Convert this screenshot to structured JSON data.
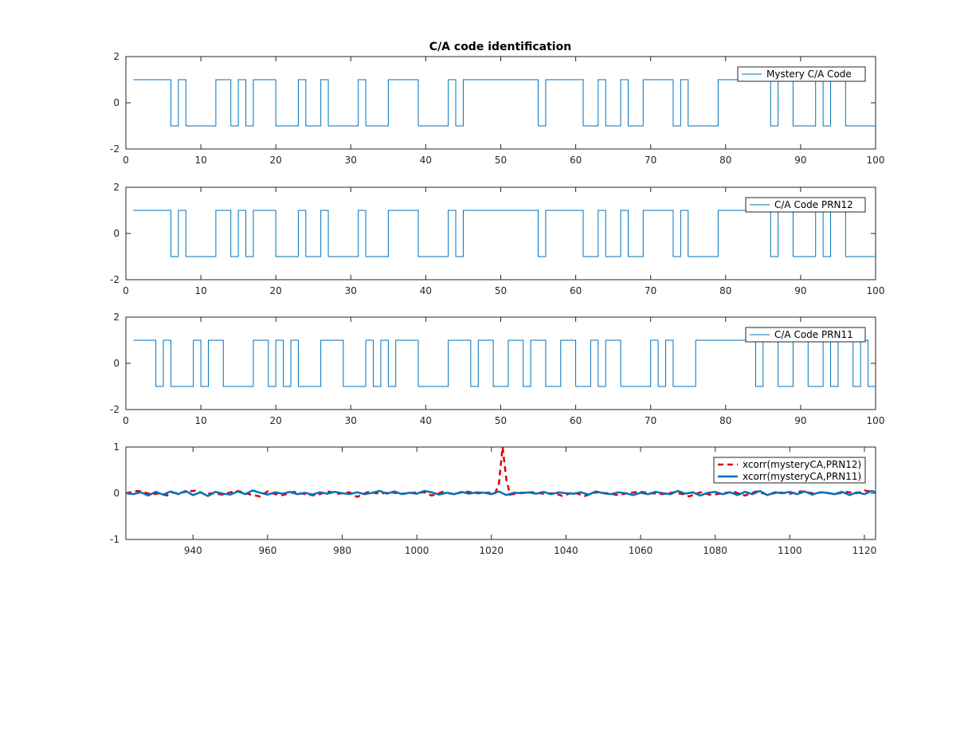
{
  "figure": {
    "title": "C/A code identification"
  },
  "colors": {
    "code": "#0072BD",
    "prn12": "#D90000",
    "prn11": "#0072BD",
    "axis": "#262626"
  },
  "chart_data": [
    {
      "type": "line",
      "title": "C/A code identification",
      "xlim": [
        0,
        100
      ],
      "ylim": [
        -2,
        2
      ],
      "xticks": [
        0,
        10,
        20,
        30,
        40,
        50,
        60,
        70,
        80,
        90,
        100
      ],
      "yticks": [
        -2,
        0,
        2
      ],
      "legend": "top-right",
      "series": [
        {
          "name": "Mystery C/A Code",
          "stairs": true,
          "x": [
            1,
            6,
            7,
            8,
            12,
            14,
            15,
            16,
            17,
            20,
            23,
            24,
            26,
            27,
            31,
            32,
            35,
            39,
            43,
            44,
            45,
            55,
            56,
            61,
            63,
            64,
            66,
            67,
            69,
            73,
            74,
            75,
            79,
            86,
            87,
            89,
            92,
            93,
            94,
            96,
            100
          ],
          "values": [
            1,
            -1,
            1,
            -1,
            1,
            -1,
            1,
            -1,
            1,
            -1,
            1,
            -1,
            1,
            -1,
            1,
            -1,
            1,
            -1,
            1,
            -1,
            1,
            -1,
            1,
            -1,
            1,
            -1,
            1,
            -1,
            1,
            -1,
            1,
            -1,
            1,
            -1,
            1,
            -1,
            1,
            -1,
            1,
            -1,
            -1
          ]
        }
      ]
    },
    {
      "type": "line",
      "xlim": [
        0,
        100
      ],
      "ylim": [
        -2,
        2
      ],
      "xticks": [
        0,
        10,
        20,
        30,
        40,
        50,
        60,
        70,
        80,
        90,
        100
      ],
      "yticks": [
        -2,
        0,
        2
      ],
      "legend": "top-right",
      "series": [
        {
          "name": "C/A Code PRN12",
          "stairs": true,
          "x": [
            1,
            6,
            7,
            8,
            12,
            14,
            15,
            16,
            17,
            20,
            23,
            24,
            26,
            27,
            31,
            32,
            35,
            39,
            43,
            44,
            45,
            55,
            56,
            61,
            63,
            64,
            66,
            67,
            69,
            73,
            74,
            75,
            79,
            86,
            87,
            89,
            92,
            93,
            94,
            96,
            100
          ],
          "values": [
            1,
            -1,
            1,
            -1,
            1,
            -1,
            1,
            -1,
            1,
            -1,
            1,
            -1,
            1,
            -1,
            1,
            -1,
            1,
            -1,
            1,
            -1,
            1,
            -1,
            1,
            -1,
            1,
            -1,
            1,
            -1,
            1,
            -1,
            1,
            -1,
            1,
            -1,
            1,
            -1,
            1,
            -1,
            1,
            -1,
            -1
          ]
        }
      ]
    },
    {
      "type": "line",
      "xlim": [
        0,
        100
      ],
      "ylim": [
        -2,
        2
      ],
      "xticks": [
        0,
        10,
        20,
        30,
        40,
        50,
        60,
        70,
        80,
        90,
        100
      ],
      "yticks": [
        -2,
        0,
        2
      ],
      "legend": "top-right",
      "series": [
        {
          "name": "C/A Code PRN11",
          "stairs": true,
          "x": [
            1,
            4,
            5,
            6,
            9,
            10,
            11,
            13,
            17,
            19,
            20,
            21,
            22,
            23,
            26,
            29,
            32,
            33,
            34,
            35,
            36,
            39,
            43,
            46,
            47,
            49,
            51,
            53,
            54,
            56,
            58,
            60,
            62,
            63,
            64,
            66,
            70,
            71,
            72,
            73,
            76,
            84,
            85,
            87,
            89,
            91,
            93,
            94,
            95,
            97,
            98,
            99,
            100
          ],
          "values": [
            1,
            -1,
            1,
            -1,
            1,
            -1,
            1,
            -1,
            1,
            -1,
            1,
            -1,
            1,
            -1,
            1,
            -1,
            1,
            -1,
            1,
            -1,
            1,
            -1,
            1,
            -1,
            1,
            -1,
            1,
            -1,
            1,
            -1,
            1,
            -1,
            1,
            -1,
            1,
            -1,
            1,
            -1,
            1,
            -1,
            1,
            -1,
            1,
            -1,
            1,
            -1,
            1,
            -1,
            1,
            -1,
            1,
            -1,
            -1
          ]
        }
      ]
    },
    {
      "type": "line",
      "xlim": [
        922,
        1123
      ],
      "ylim": [
        -1,
        1
      ],
      "xticks": [
        940,
        960,
        980,
        1000,
        1020,
        1040,
        1060,
        1080,
        1100,
        1120
      ],
      "yticks": [
        -1,
        0,
        1
      ],
      "legend": "top-right",
      "series": [
        {
          "name": "xcorr(mysteryCA,PRN12)",
          "style": "dashed",
          "x": [
            922,
            925,
            926,
            929,
            931,
            933,
            934,
            936,
            938,
            941,
            943,
            945,
            948,
            950,
            952,
            955,
            958,
            960,
            962,
            964,
            967,
            970,
            973,
            976,
            979,
            982,
            984,
            987,
            990,
            993,
            996,
            999,
            1002,
            1004,
            1007,
            1010,
            1013,
            1016,
            1019,
            1021,
            1022,
            1023,
            1024,
            1025,
            1028,
            1031,
            1034,
            1037,
            1039,
            1042,
            1045,
            1048,
            1051,
            1054,
            1057,
            1060,
            1063,
            1066,
            1069,
            1072,
            1073,
            1076,
            1079,
            1082,
            1085,
            1088,
            1091,
            1094,
            1097,
            1100,
            1103,
            1106,
            1109,
            1112,
            1115,
            1118,
            1120,
            1123
          ],
          "values": [
            0,
            0.05,
            0.04,
            -0.03,
            0,
            -0.05,
            0.02,
            0,
            0.03,
            0.06,
            -0.02,
            0,
            -0.03,
            0.02,
            0.05,
            -0.02,
            -0.07,
            0.04,
            -0.02,
            -0.04,
            0.03,
            -0.02,
            -0.05,
            0.04,
            -0.01,
            0.02,
            -0.08,
            0.03,
            -0.01,
            0.02,
            -0.01,
            0.01,
            0.02,
            -0.05,
            0.03,
            -0.02,
            0.04,
            0,
            0.01,
            0,
            0.2,
            1,
            0.3,
            -0.03,
            0.01,
            0.02,
            -0.01,
            0,
            -0.06,
            0.02,
            -0.06,
            0.02,
            0,
            -0.04,
            0.01,
            0.03,
            0,
            -0.02,
            0.02,
            -0.03,
            -0.07,
            0.02,
            -0.04,
            0,
            0.03,
            -0.05,
            0.04,
            -0.03,
            0.02,
            -0.01,
            0.04,
            0,
            0.02,
            -0.02,
            0.03,
            0,
            0.06,
            0.02
          ]
        },
        {
          "name": "xcorr(mysteryCA,PRN11)",
          "style": "solid",
          "x": [
            922,
            924,
            926,
            928,
            930,
            932,
            934,
            936,
            938,
            940,
            942,
            944,
            946,
            948,
            950,
            952,
            954,
            956,
            958,
            960,
            962,
            964,
            966,
            968,
            970,
            972,
            974,
            976,
            978,
            980,
            982,
            984,
            986,
            988,
            990,
            992,
            994,
            996,
            998,
            1000,
            1002,
            1004,
            1006,
            1008,
            1010,
            1012,
            1014,
            1016,
            1018,
            1020,
            1022,
            1024,
            1026,
            1028,
            1030,
            1032,
            1034,
            1036,
            1038,
            1040,
            1042,
            1044,
            1046,
            1048,
            1050,
            1052,
            1054,
            1056,
            1058,
            1060,
            1062,
            1064,
            1066,
            1068,
            1070,
            1072,
            1074,
            1076,
            1078,
            1080,
            1082,
            1084,
            1086,
            1088,
            1090,
            1092,
            1094,
            1096,
            1098,
            1100,
            1102,
            1104,
            1106,
            1108,
            1110,
            1112,
            1114,
            1116,
            1118,
            1120,
            1122,
            1123
          ],
          "values": [
            0,
            -0.02,
            0.02,
            -0.05,
            0.03,
            -0.03,
            0.04,
            -0.02,
            0.05,
            -0.04,
            0.02,
            -0.06,
            0.03,
            -0.01,
            -0.03,
            0.04,
            -0.02,
            0.06,
            0.01,
            -0.03,
            0.02,
            -0.01,
            0.03,
            -0.02,
            0.01,
            -0.03,
            0.02,
            -0.01,
            0.03,
            0,
            -0.02,
            0.02,
            -0.02,
            0.01,
            0.05,
            -0.01,
            0.04,
            -0.02,
            0.01,
            -0.01,
            0.05,
            0.02,
            -0.03,
            0.01,
            -0.02,
            0.03,
            -0.01,
            0.02,
            0.01,
            -0.02,
            0.04,
            -0.04,
            0.01,
            0,
            0.02,
            -0.01,
            0.03,
            -0.02,
            0.02,
            0,
            -0.01,
            0.02,
            -0.03,
            0.04,
            0,
            -0.02,
            0.02,
            0,
            -0.04,
            0.01,
            -0.02,
            0.03,
            0,
            -0.02,
            0.05,
            -0.01,
            0.02,
            -0.05,
            0.01,
            0.03,
            -0.02,
            0.02,
            -0.04,
            0.03,
            -0.02,
            0.05,
            -0.04,
            0.02,
            0,
            0.03,
            -0.02,
            0.04,
            -0.03,
            0.02,
            0.01,
            -0.02,
            0.03,
            -0.04,
            0.02,
            -0.02,
            0.05,
            0.02
          ]
        }
      ]
    }
  ]
}
